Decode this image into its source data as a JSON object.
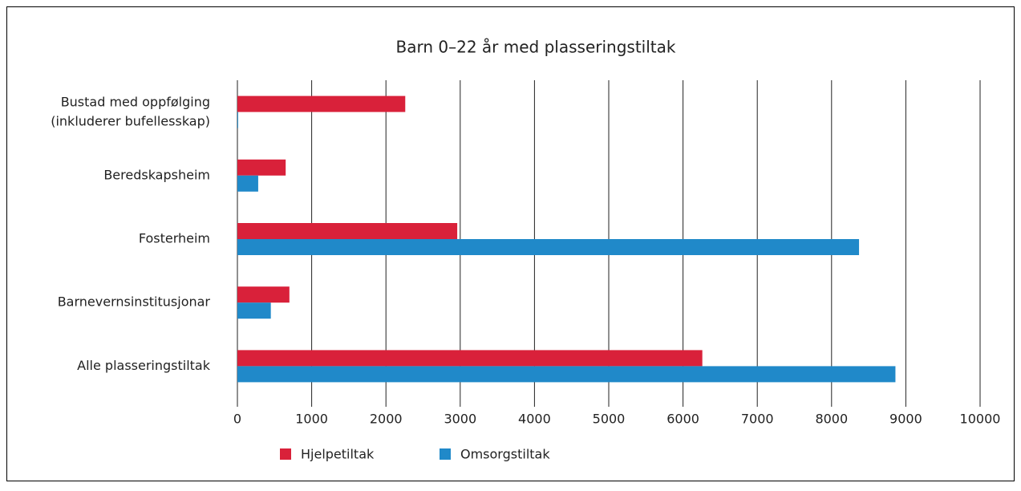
{
  "chart_data": {
    "type": "hbar",
    "title": "Barn 0–22 år med plasseringstiltak",
    "categories": [
      "Bustad med oppfølging\n(inkluderer bufellesskap)",
      "Beredskapsheim",
      "Fosterheim",
      "Barnevernsinstitusjonar",
      "Alle plasseringstiltak"
    ],
    "series": [
      {
        "name": "Hjelpetiltak",
        "color": "#d9213a",
        "values": [
          2260,
          650,
          2960,
          700,
          6260
        ]
      },
      {
        "name": "Omsorgstiltak",
        "color": "#2089c9",
        "values": [
          10,
          280,
          8370,
          450,
          8860
        ]
      }
    ],
    "xlim": [
      0,
      10000
    ],
    "xticks": [
      0,
      1000,
      2000,
      3000,
      4000,
      5000,
      6000,
      7000,
      8000,
      9000,
      10000
    ],
    "grid": true
  }
}
